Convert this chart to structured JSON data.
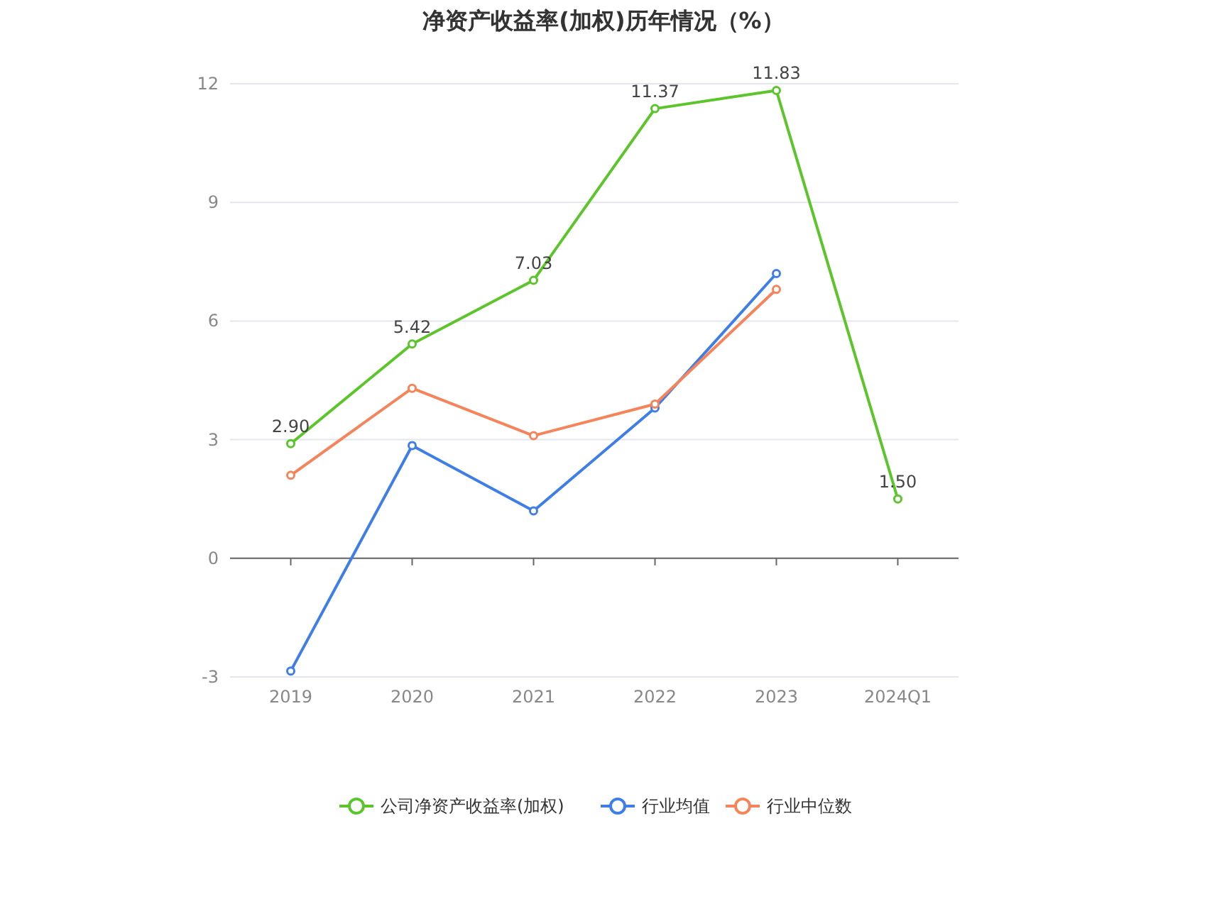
{
  "chart_data": {
    "type": "line",
    "title": "净资产收益率(加权)历年情况（%）",
    "categories": [
      "2019",
      "2020",
      "2021",
      "2022",
      "2023",
      "2024Q1"
    ],
    "series": [
      {
        "name": "公司净资产收益率(加权)",
        "color": "#5cc52b",
        "values": [
          2.9,
          5.42,
          7.03,
          11.37,
          11.83,
          1.5
        ],
        "value_labels": [
          "2.90",
          "5.42",
          "7.03",
          "11.37",
          "11.83",
          "1.50"
        ]
      },
      {
        "name": "行业均值",
        "color": "#3f7ee8",
        "values": [
          -2.85,
          2.85,
          1.2,
          3.8,
          7.2,
          null
        ]
      },
      {
        "name": "行业中位数",
        "color": "#f5845a",
        "values": [
          2.1,
          4.3,
          3.1,
          3.9,
          6.8,
          null
        ]
      }
    ],
    "ylim": [
      -3,
      12
    ],
    "yticks": [
      -3,
      0,
      3,
      6,
      9,
      12
    ],
    "grid": "y",
    "legend": "bottom",
    "marker": "circle",
    "line_style": "solid"
  }
}
